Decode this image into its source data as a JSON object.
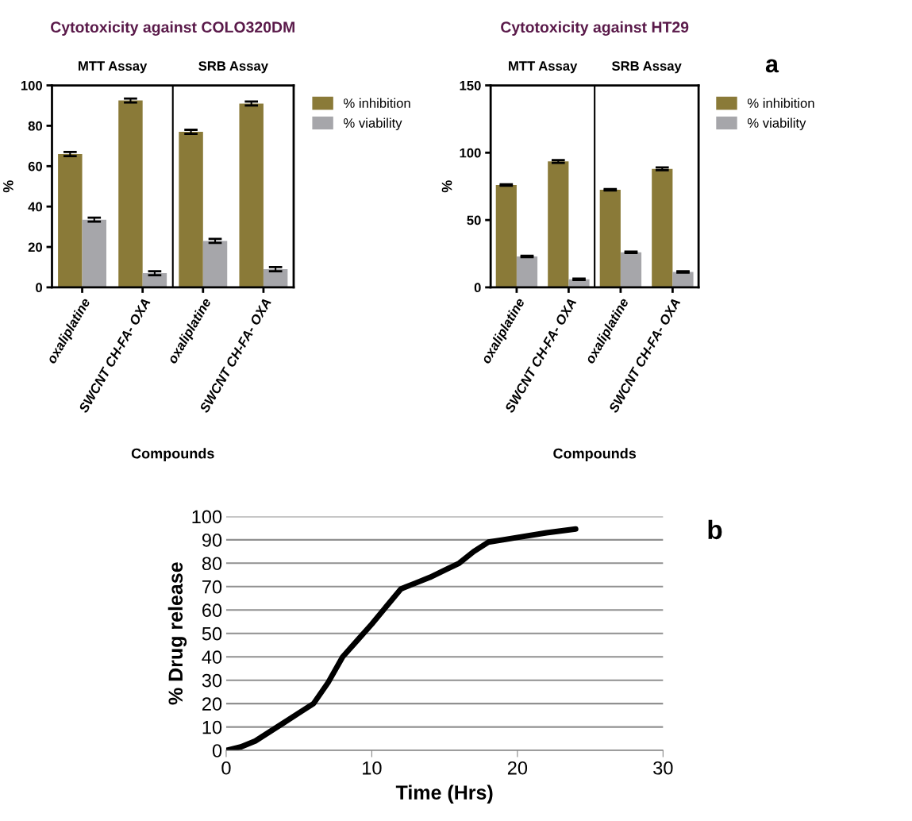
{
  "chart_data": [
    {
      "type": "bar",
      "title": "Cytotoxicity against COLO320DM",
      "xlabel": "Compounds",
      "ylabel": "%",
      "categories": [
        "oxaliplatine",
        "SWCNT CH-FA- OXA",
        "oxaliplatine",
        "SWCNT CH-FA- OXA"
      ],
      "ylim": [
        0,
        100
      ],
      "yticks": [
        0,
        20,
        40,
        60,
        80,
        100
      ],
      "legend": "right",
      "grid": false,
      "annotations": [
        "MTT Assay",
        "SRB Assay"
      ],
      "series": [
        {
          "name": "% inhibition",
          "color": "#8a7a38",
          "values": [
            66,
            92.5,
            77,
            91
          ],
          "errors": [
            1,
            1,
            1,
            1
          ]
        },
        {
          "name": "% viability",
          "color": "#a6a6aa",
          "values": [
            33.5,
            7,
            23,
            9
          ],
          "errors": [
            1,
            1,
            1,
            1
          ]
        }
      ]
    },
    {
      "type": "bar",
      "title": "Cytotoxicity against HT29",
      "xlabel": "Compounds",
      "ylabel": "%",
      "categories": [
        "oxaliplatine",
        "SWCNT CH-FA- OXA",
        "oxaliplatine",
        "SWCNT CH-FA- OXA"
      ],
      "ylim": [
        0,
        150
      ],
      "yticks": [
        0,
        50,
        100,
        150
      ],
      "legend": "right",
      "grid": false,
      "annotations": [
        "MTT Assay",
        "SRB Assay",
        "a"
      ],
      "series": [
        {
          "name": "% inhibition",
          "color": "#8a7a38",
          "values": [
            76,
            93.5,
            72.5,
            88
          ],
          "errors": [
            0.5,
            1,
            0.5,
            1
          ]
        },
        {
          "name": "% viability",
          "color": "#a6a6aa",
          "values": [
            23,
            6,
            26,
            11.5
          ],
          "errors": [
            0.5,
            0.5,
            0.5,
            0.5
          ]
        }
      ]
    },
    {
      "type": "line",
      "xlabel": "Time (Hrs)",
      "ylabel": "% Drug release",
      "xlim": [
        0,
        30
      ],
      "xticks": [
        0,
        10,
        20,
        30
      ],
      "ylim": [
        0,
        100
      ],
      "yticks": [
        0,
        10,
        20,
        30,
        40,
        50,
        60,
        70,
        80,
        90,
        100
      ],
      "grid": "y",
      "marker": "none",
      "line_style": "solid",
      "annotations": [
        "b"
      ],
      "series": [
        {
          "color": "#000000",
          "x": [
            0,
            1,
            2,
            3,
            4,
            5,
            6,
            7,
            8,
            9,
            10,
            11,
            12,
            13,
            14,
            15,
            16,
            17,
            18,
            19,
            20,
            22,
            24
          ],
          "values": [
            0,
            1.5,
            4,
            8,
            12,
            16,
            20,
            29,
            40,
            47,
            54,
            61.5,
            69,
            71.5,
            74,
            77,
            80,
            85,
            89,
            90,
            91,
            93,
            94.6
          ]
        }
      ]
    }
  ]
}
